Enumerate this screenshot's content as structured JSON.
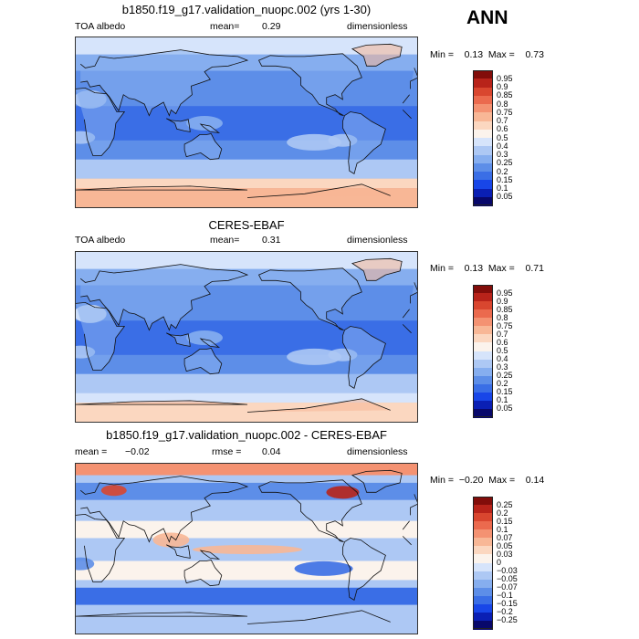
{
  "season": "ANN",
  "palettes": {
    "albedo": [
      "#08086b",
      "#0a1fb4",
      "#1846e8",
      "#3a6ee6",
      "#5d8ee8",
      "#86aeef",
      "#adc8f4",
      "#d6e4fb",
      "#fbf3ec",
      "#fbd7c0",
      "#f8b796",
      "#f49272",
      "#eb6a4e",
      "#d9462f",
      "#b8231a",
      "#820d0a"
    ],
    "diff": [
      "#08086b",
      "#0a1fb4",
      "#1846e8",
      "#3a6ee6",
      "#5d8ee8",
      "#86aeef",
      "#adc8f4",
      "#d6e4fb",
      "#fbf3ec",
      "#fbd7c0",
      "#f8b796",
      "#f49272",
      "#eb6a4e",
      "#d9462f",
      "#b8231a",
      "#820d0a"
    ]
  },
  "panels": [
    {
      "title": "b1850.f19_g17.validation_nuopc.002 (yrs 1-30)",
      "variable": "TOA albedo",
      "stat_label": "mean=",
      "stat_value": "0.29",
      "units": "dimensionless",
      "min_label": "Min =",
      "min_value": "0.13",
      "max_label": "Max =",
      "max_value": "0.73",
      "colorbar_levels": [
        "0.95",
        "0.9",
        "0.85",
        "0.8",
        "0.75",
        "0.7",
        "0.6",
        "0.5",
        "0.4",
        "0.3",
        "0.25",
        "0.2",
        "0.15",
        "0.1",
        "0.05"
      ]
    },
    {
      "title": "CERES-EBAF",
      "variable": "TOA albedo",
      "stat_label": "mean=",
      "stat_value": "0.31",
      "units": "dimensionless",
      "min_label": "Min =",
      "min_value": "0.13",
      "max_label": "Max =",
      "max_value": "0.71",
      "colorbar_levels": [
        "0.95",
        "0.9",
        "0.85",
        "0.8",
        "0.75",
        "0.7",
        "0.6",
        "0.5",
        "0.4",
        "0.3",
        "0.25",
        "0.2",
        "0.15",
        "0.1",
        "0.05"
      ]
    },
    {
      "title": "b1850.f19_g17.validation_nuopc.002 - CERES-EBAF",
      "mean_label": "mean =",
      "mean_value": "−0.02",
      "rmse_label": "rmse =",
      "rmse_value": "0.04",
      "units": "dimensionless",
      "min_label": "Min =",
      "min_value": "−0.20",
      "max_label": "Max =",
      "max_value": "0.14",
      "colorbar_levels": [
        "0.25",
        "0.2",
        "0.15",
        "0.1",
        "0.07",
        "0.05",
        "0.03",
        "0",
        "−0.03",
        "−0.05",
        "−0.07",
        "−0.1",
        "−0.15",
        "−0.2",
        "−0.25"
      ]
    }
  ]
}
